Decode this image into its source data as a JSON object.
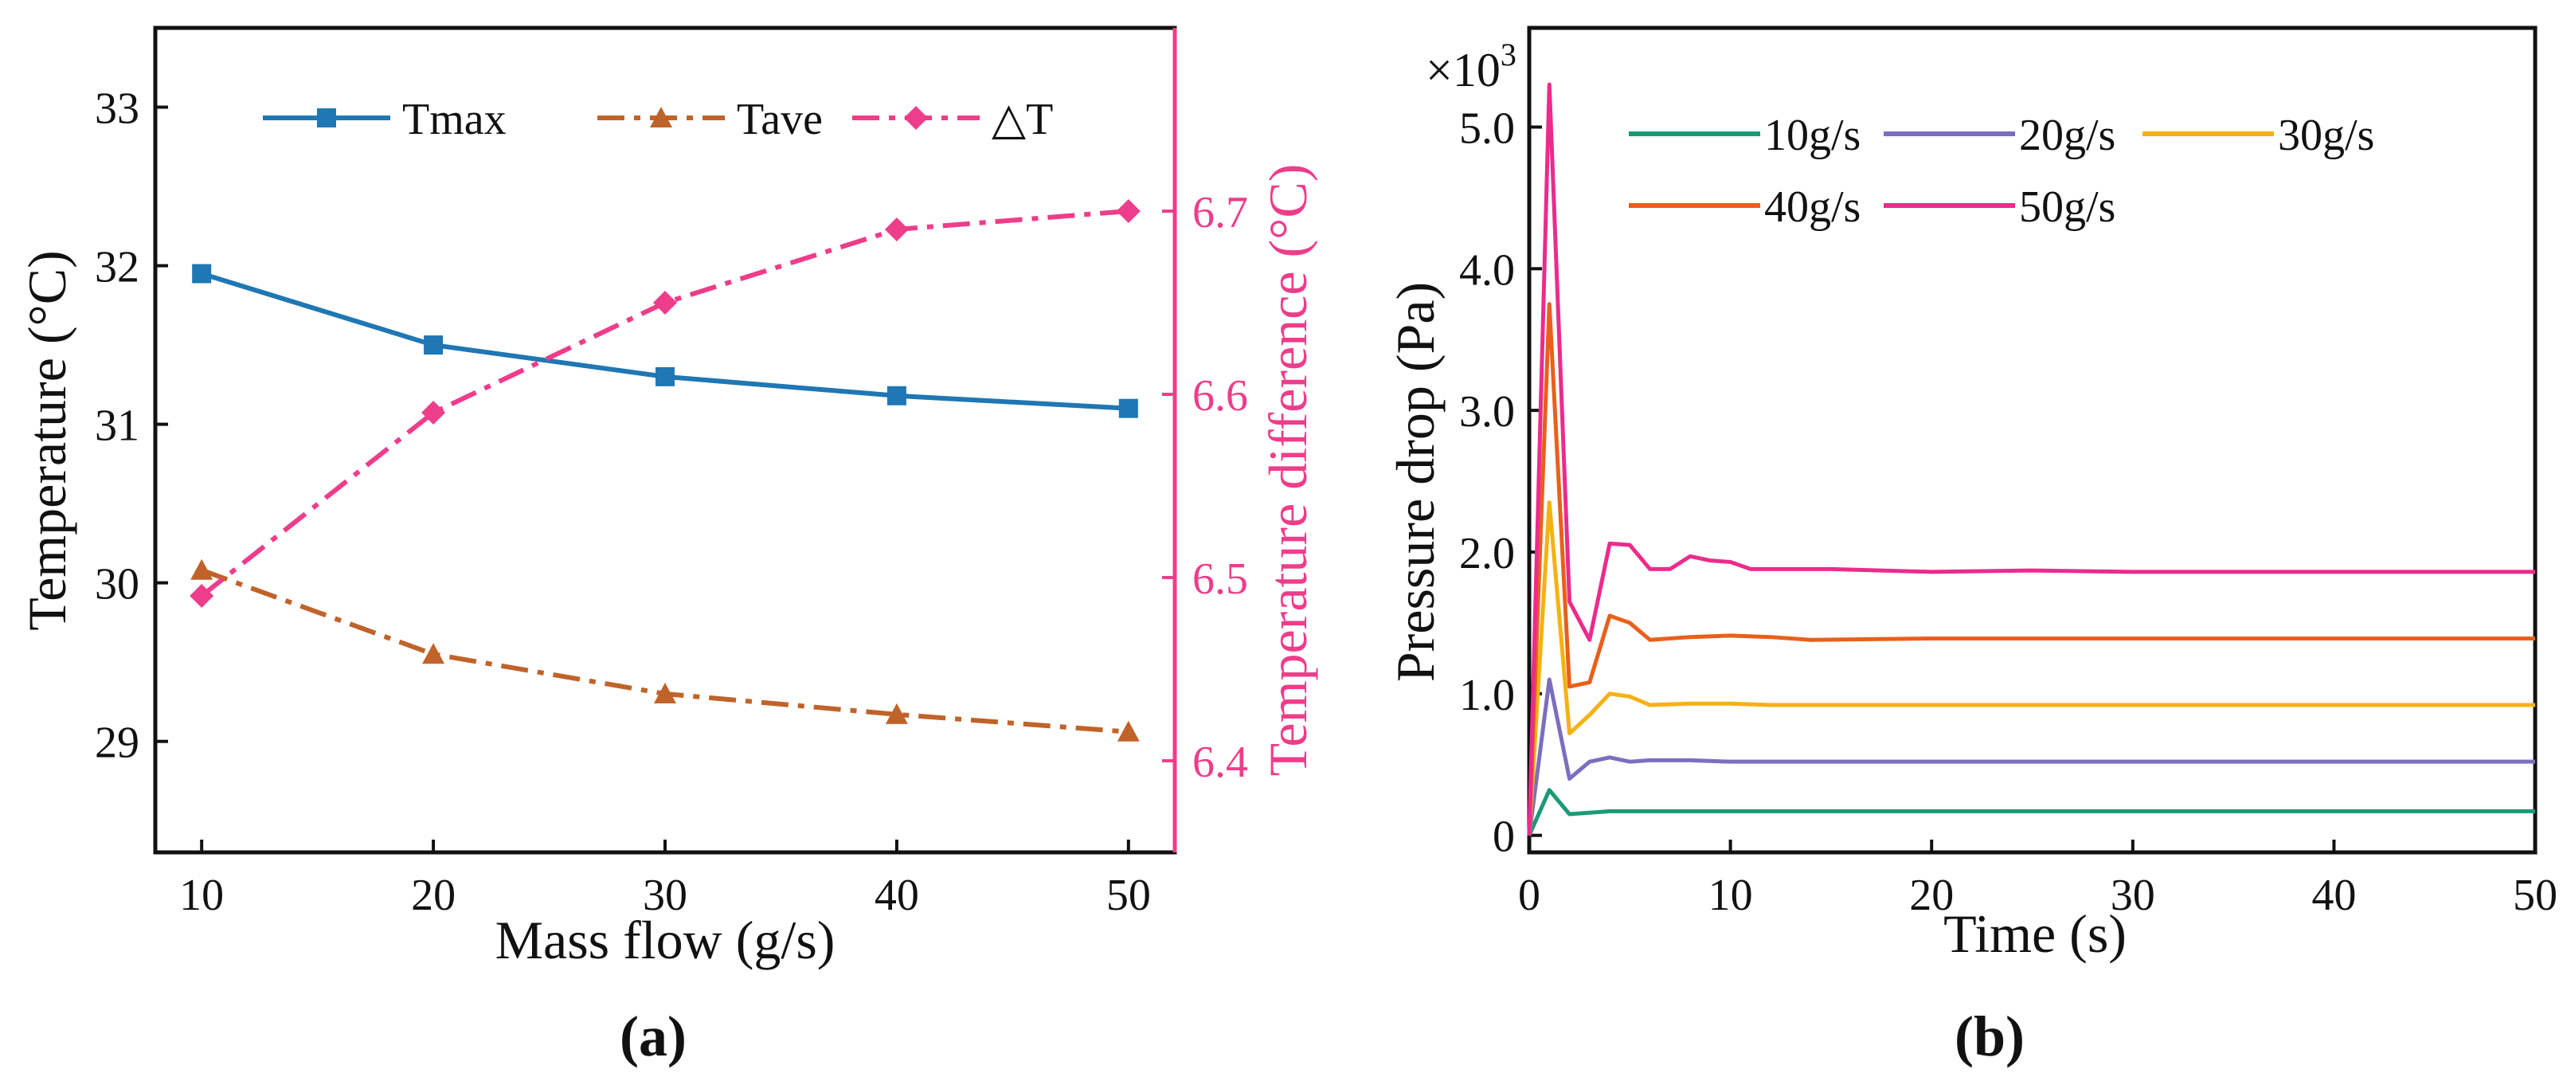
{
  "chart_data": [
    {
      "type": "line",
      "panel_label": "(a)",
      "xlabel": "Mass flow (g/s)",
      "ylabel": "Temperature (°C)",
      "y2label": "Temperature difference (°C)",
      "xlim": [
        8,
        52
      ],
      "ylim": [
        28.3,
        33.5
      ],
      "y2lim": [
        6.35,
        6.8
      ],
      "xticks": [
        10,
        20,
        30,
        40,
        50
      ],
      "yticks": [
        29,
        30,
        31,
        32,
        33
      ],
      "y2ticks": [
        6.4,
        6.5,
        6.6,
        6.7
      ],
      "y2tick_labels": [
        "6.4",
        "6.5",
        "6.6",
        "6.7"
      ],
      "legend_position": "top",
      "x": [
        10,
        20,
        30,
        40,
        50
      ],
      "series": [
        {
          "name": "Tmax",
          "axis": "left",
          "color": "#1f77b4",
          "marker": "square",
          "dash": "solid",
          "values": [
            31.95,
            31.5,
            31.3,
            31.18,
            31.1
          ]
        },
        {
          "name": "Tave",
          "axis": "left",
          "color": "#c0632a",
          "marker": "triangle",
          "dash": "dashdot",
          "values": [
            30.08,
            29.55,
            29.3,
            29.17,
            29.06
          ]
        },
        {
          "name": "△T",
          "axis": "right",
          "color": "#ee3d8a",
          "marker": "diamond",
          "dash": "dashdot",
          "values": [
            6.49,
            6.59,
            6.65,
            6.69,
            6.7
          ]
        }
      ]
    },
    {
      "type": "line",
      "panel_label": "(b)",
      "xlabel": "Time (s)",
      "ylabel": "Pressure drop (Pa)",
      "multiplier": "×10",
      "multiplier_exp": "3",
      "xlim": [
        0,
        50
      ],
      "ylim": [
        -0.12,
        5.7
      ],
      "xticks": [
        0,
        10,
        20,
        30,
        40,
        50
      ],
      "yticks": [
        0,
        1,
        2,
        3,
        4,
        5
      ],
      "ytick_labels": [
        "0",
        "1.0",
        "2.0",
        "3.0",
        "4.0",
        "5.0"
      ],
      "legend_position": "top",
      "series": [
        {
          "name": "10g/s",
          "color": "#1a9a76",
          "x": [
            0,
            1,
            2,
            3,
            4,
            5,
            6,
            8,
            10,
            15,
            20,
            30,
            40,
            50
          ],
          "values": [
            0,
            0.32,
            0.15,
            0.16,
            0.17,
            0.17,
            0.17,
            0.17,
            0.17,
            0.17,
            0.17,
            0.17,
            0.17,
            0.17
          ]
        },
        {
          "name": "20g/s",
          "color": "#7a6fbf",
          "x": [
            0,
            1,
            2,
            3,
            4,
            5,
            6,
            8,
            10,
            15,
            20,
            30,
            40,
            50
          ],
          "values": [
            0,
            1.1,
            0.4,
            0.52,
            0.55,
            0.52,
            0.53,
            0.53,
            0.52,
            0.52,
            0.52,
            0.52,
            0.52,
            0.52
          ]
        },
        {
          "name": "30g/s",
          "color": "#f5b114",
          "x": [
            0,
            1,
            2,
            3,
            4,
            5,
            6,
            8,
            10,
            12,
            20,
            30,
            40,
            50
          ],
          "values": [
            0,
            2.35,
            0.72,
            0.85,
            1.0,
            0.98,
            0.92,
            0.93,
            0.93,
            0.92,
            0.92,
            0.92,
            0.92,
            0.92
          ]
        },
        {
          "name": "40g/s",
          "color": "#e8601c",
          "x": [
            0,
            1,
            2,
            3,
            4,
            5,
            6,
            8,
            10,
            12,
            14,
            20,
            30,
            40,
            50
          ],
          "values": [
            0,
            3.75,
            1.05,
            1.08,
            1.55,
            1.5,
            1.38,
            1.4,
            1.41,
            1.4,
            1.38,
            1.39,
            1.39,
            1.39,
            1.39
          ]
        },
        {
          "name": "50g/s",
          "color": "#ec2b8c",
          "x": [
            0,
            1,
            2,
            3,
            4,
            5,
            6,
            7,
            8,
            9,
            10,
            11,
            15,
            20,
            25,
            30,
            40,
            50
          ],
          "values": [
            0,
            5.3,
            1.65,
            1.38,
            2.06,
            2.05,
            1.88,
            1.88,
            1.97,
            1.94,
            1.93,
            1.88,
            1.88,
            1.86,
            1.87,
            1.86,
            1.86,
            1.86
          ]
        }
      ]
    }
  ]
}
